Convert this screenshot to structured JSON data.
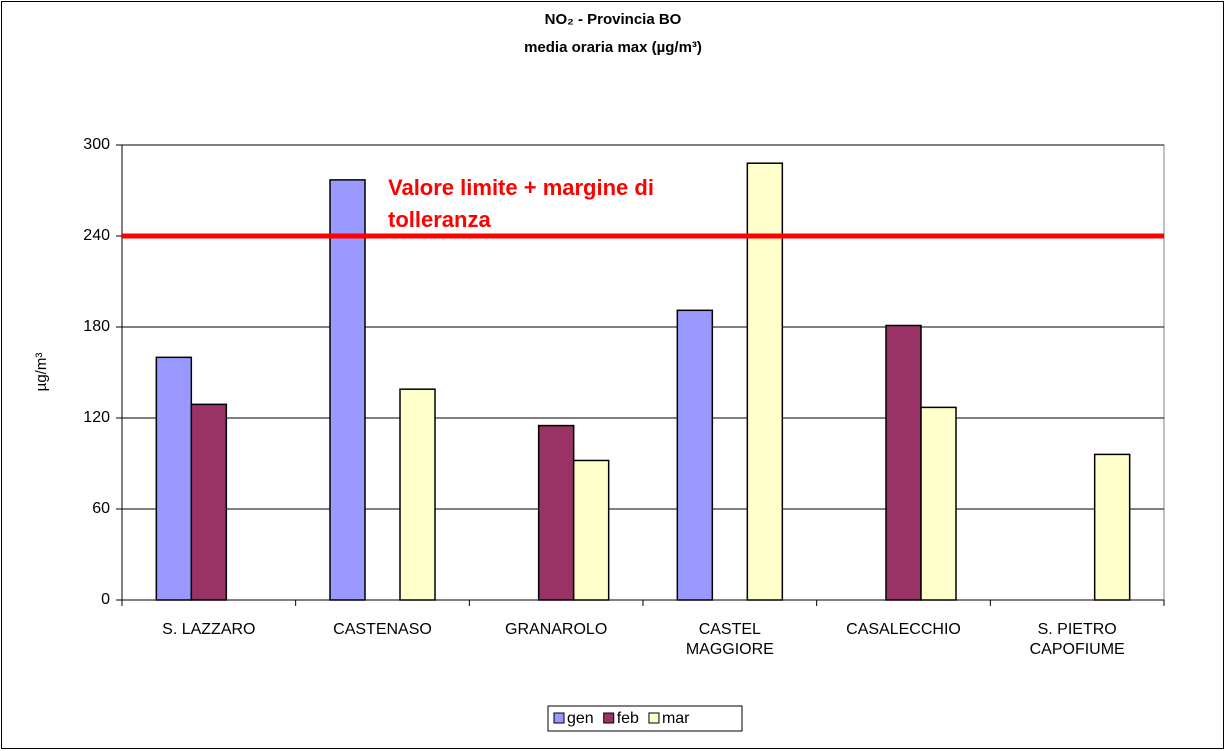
{
  "chart_data": {
    "type": "bar",
    "title": "NO₂ - Provincia BO",
    "subtitle": "media oraria max (µg/m³)",
    "y_label": "µg/m³",
    "categories": [
      "S. LAZZARO",
      "CASTENASO",
      "GRANAROLO",
      "CASTEL MAGGIORE",
      "CASALECCHIO",
      "S. PIETRO CAPOFIUME"
    ],
    "series": [
      {
        "name": "gen",
        "color": "#9999ff",
        "values": [
          160,
          277,
          null,
          191,
          null,
          null
        ]
      },
      {
        "name": "feb",
        "color": "#993366",
        "values": [
          129,
          null,
          115,
          null,
          181,
          null
        ]
      },
      {
        "name": "mar",
        "color": "#ffffcc",
        "values": [
          null,
          139,
          92,
          288,
          127,
          96
        ]
      }
    ],
    "ylim": [
      0,
      300
    ],
    "yticks": [
      0,
      60,
      120,
      180,
      240,
      300
    ],
    "grid": true,
    "limit": {
      "value": 240,
      "label": "Valore limite + margine di tolleranza",
      "color": "#ff0000"
    },
    "legend": "bottom"
  }
}
